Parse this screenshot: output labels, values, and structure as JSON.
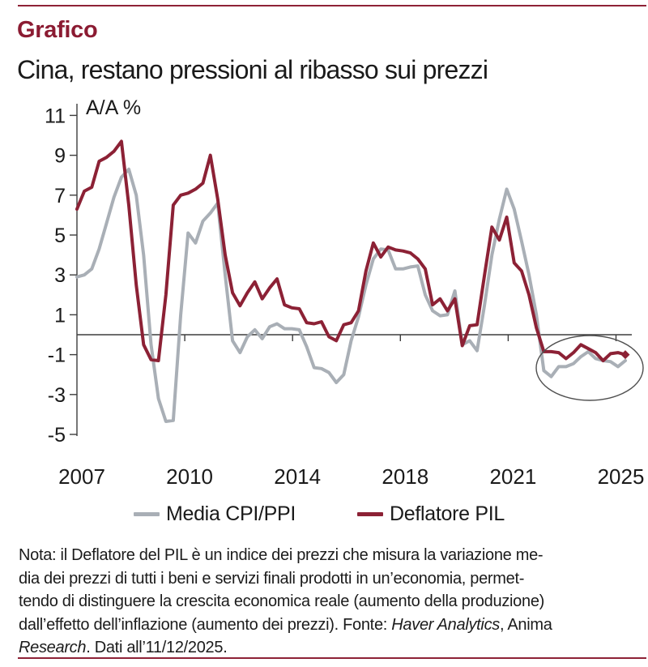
{
  "header": {
    "kicker": "Grafico",
    "title": "Cina, restano pressioni al ribasso sui prezzi"
  },
  "colors": {
    "accent_maroon": "#8b1b32",
    "rule": "#8e2236",
    "line_deflatore": "#8c2135",
    "line_cpi_ppi": "#a9afb6",
    "axis": "#3d3d3d",
    "ellipse": "#4f4f4f",
    "text": "#1a1a1a"
  },
  "chart_data": {
    "type": "line",
    "unit_label": "A/A %",
    "x_tick_labels": [
      "2007",
      "2010",
      "2014",
      "2018",
      "2021",
      "2025"
    ],
    "y_ticks": [
      11,
      9,
      7,
      5,
      3,
      1,
      -1,
      -3,
      -5
    ],
    "ylim": [
      -5,
      11
    ],
    "x_range_years": [
      2007,
      2025
    ],
    "frequency": "quarterly",
    "grid": "off",
    "legend_position": "bottom",
    "annotation": "thin gray ellipse circling the 2023-2025 deflation period at lower right",
    "highlight_ellipse": true,
    "series": [
      {
        "name": "Media CPI/PPI",
        "color": "#a9afb6",
        "values": [
          2.9,
          3.0,
          3.3,
          4.3,
          5.6,
          6.9,
          7.9,
          8.3,
          7.0,
          4.0,
          -0.5,
          -3.2,
          -4.35,
          -4.3,
          1.0,
          5.1,
          4.6,
          5.7,
          6.1,
          6.6,
          3.0,
          -0.3,
          -0.9,
          -0.1,
          0.25,
          -0.2,
          0.4,
          0.55,
          0.3,
          0.3,
          0.25,
          -0.6,
          -1.65,
          -1.7,
          -1.9,
          -2.4,
          -2.0,
          -0.3,
          0.9,
          2.5,
          3.8,
          4.3,
          4.25,
          3.3,
          3.3,
          3.4,
          3.45,
          2.0,
          1.2,
          0.95,
          1.0,
          2.2,
          -0.5,
          -0.3,
          -0.8,
          1.5,
          4.0,
          5.8,
          7.3,
          6.3,
          4.7,
          3.0,
          1.0,
          -1.8,
          -2.1,
          -1.6,
          -1.6,
          -1.45,
          -1.1,
          -0.85,
          -1.2,
          -1.3,
          -1.35,
          -1.6,
          -1.3
        ]
      },
      {
        "name": "Deflatore PIL",
        "color": "#8c2135",
        "end_marker": "diamond",
        "values": [
          6.3,
          7.2,
          7.4,
          8.7,
          8.9,
          9.2,
          9.7,
          6.5,
          2.5,
          -0.5,
          -1.25,
          -1.3,
          2.0,
          6.5,
          7.0,
          7.1,
          7.3,
          7.6,
          9.0,
          6.8,
          4.0,
          2.1,
          1.45,
          2.1,
          2.65,
          1.8,
          2.35,
          2.8,
          1.5,
          1.35,
          1.3,
          0.6,
          0.55,
          0.65,
          -0.1,
          -0.3,
          0.5,
          0.6,
          1.2,
          3.2,
          4.6,
          3.9,
          4.4,
          4.25,
          4.2,
          4.1,
          3.8,
          3.3,
          1.5,
          1.8,
          1.2,
          1.8,
          -0.55,
          0.45,
          0.5,
          3.0,
          5.4,
          4.75,
          5.9,
          3.6,
          3.2,
          2.0,
          0.35,
          -0.85,
          -0.85,
          -0.9,
          -1.2,
          -0.9,
          -0.5,
          -0.7,
          -0.9,
          -1.3,
          -0.95,
          -0.9,
          -1.0
        ]
      }
    ]
  },
  "note": {
    "lines": [
      [
        {
          "t": "Nota: il Deflatore del PIL è un indice dei prezzi che misura la variazione me-",
          "i": false
        }
      ],
      [
        {
          "t": "dia dei prezzi di tutti i beni e servizi finali prodotti in un’economia, permet-",
          "i": false
        }
      ],
      [
        {
          "t": "tendo di distinguere la crescita economica reale (aumento della produzione)",
          "i": false
        }
      ],
      [
        {
          "t": "dall’effetto dell’inflazione (aumento dei prezzi). Fonte: ",
          "i": false
        },
        {
          "t": "Haver Analytics",
          "i": true
        },
        {
          "t": ", Anima",
          "i": false
        }
      ],
      [
        {
          "t": "Research",
          "i": true
        },
        {
          "t": ". Dati all’11/12/2025.",
          "i": false
        }
      ]
    ]
  }
}
